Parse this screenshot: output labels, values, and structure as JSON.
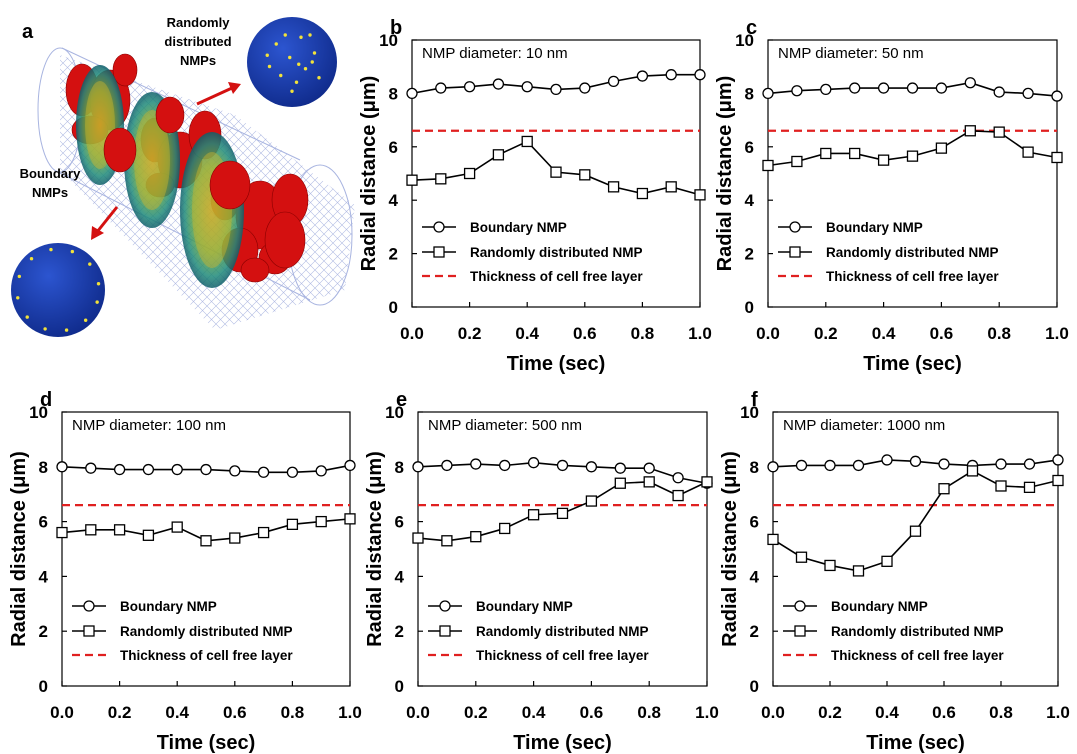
{
  "illustration": {
    "panel_label": "a",
    "label_random": [
      "Randomly",
      "distributed",
      "NMPs"
    ],
    "label_boundary": [
      "Boundary",
      "NMPs"
    ]
  },
  "legend": {
    "boundary": "Boundary NMP",
    "random": "Randomly distributed NMP",
    "cfl": "Thickness of cell free layer"
  },
  "colors": {
    "line": "#000000",
    "cfl": "#e02020",
    "rbc": "#d41010",
    "sphere": "#1a3fb8",
    "particle": "#f2e23a"
  },
  "chart_data": [
    {
      "panel": "b",
      "type": "line",
      "annotation": "NMP diameter: 10 nm",
      "xlabel": "Time (sec)",
      "ylabel": "Radial distance (μm)",
      "xlim": [
        0,
        1
      ],
      "ylim": [
        0,
        10
      ],
      "xticks": [
        "0.0",
        "0.2",
        "0.4",
        "0.6",
        "0.8",
        "1.0"
      ],
      "yticks": [
        "0",
        "2",
        "4",
        "6",
        "8",
        "10"
      ],
      "x": [
        0,
        0.1,
        0.2,
        0.3,
        0.4,
        0.5,
        0.6,
        0.7,
        0.8,
        0.9,
        1.0
      ],
      "series": [
        {
          "name": "Boundary NMP",
          "marker": "circle",
          "values": [
            8.0,
            8.2,
            8.25,
            8.35,
            8.25,
            8.15,
            8.2,
            8.45,
            8.65,
            8.7,
            8.7
          ]
        },
        {
          "name": "Randomly distributed NMP",
          "marker": "square",
          "values": [
            4.75,
            4.8,
            5.0,
            5.7,
            6.2,
            5.05,
            4.95,
            4.5,
            4.25,
            4.5,
            4.2
          ]
        }
      ],
      "cfl": 6.6
    },
    {
      "panel": "c",
      "type": "line",
      "annotation": "NMP diameter: 50 nm",
      "xlabel": "Time (sec)",
      "ylabel": "Radial distance (μm)",
      "xlim": [
        0,
        1
      ],
      "ylim": [
        0,
        10
      ],
      "xticks": [
        "0.0",
        "0.2",
        "0.4",
        "0.6",
        "0.8",
        "1.0"
      ],
      "yticks": [
        "0",
        "2",
        "4",
        "6",
        "8",
        "10"
      ],
      "x": [
        0,
        0.1,
        0.2,
        0.3,
        0.4,
        0.5,
        0.6,
        0.7,
        0.8,
        0.9,
        1.0
      ],
      "series": [
        {
          "name": "Boundary NMP",
          "marker": "circle",
          "values": [
            8.0,
            8.1,
            8.15,
            8.2,
            8.2,
            8.2,
            8.2,
            8.4,
            8.05,
            8.0,
            7.9
          ]
        },
        {
          "name": "Randomly distributed NMP",
          "marker": "square",
          "values": [
            5.3,
            5.45,
            5.75,
            5.75,
            5.5,
            5.65,
            5.95,
            6.6,
            6.55,
            5.8,
            5.6
          ]
        }
      ],
      "cfl": 6.6
    },
    {
      "panel": "d",
      "type": "line",
      "annotation": "NMP diameter: 100 nm",
      "xlabel": "Time (sec)",
      "ylabel": "Radial distance (μm)",
      "xlim": [
        0,
        1
      ],
      "ylim": [
        0,
        10
      ],
      "xticks": [
        "0.0",
        "0.2",
        "0.4",
        "0.6",
        "0.8",
        "1.0"
      ],
      "yticks": [
        "0",
        "2",
        "4",
        "6",
        "8",
        "10"
      ],
      "x": [
        0,
        0.1,
        0.2,
        0.3,
        0.4,
        0.5,
        0.6,
        0.7,
        0.8,
        0.9,
        1.0
      ],
      "series": [
        {
          "name": "Boundary NMP",
          "marker": "circle",
          "values": [
            8.0,
            7.95,
            7.9,
            7.9,
            7.9,
            7.9,
            7.85,
            7.8,
            7.8,
            7.85,
            8.05
          ]
        },
        {
          "name": "Randomly distributed NMP",
          "marker": "square",
          "values": [
            5.6,
            5.7,
            5.7,
            5.5,
            5.8,
            5.3,
            5.4,
            5.6,
            5.9,
            6.0,
            6.1
          ]
        }
      ],
      "cfl": 6.6
    },
    {
      "panel": "e",
      "type": "line",
      "annotation": "NMP diameter: 500 nm",
      "xlabel": "Time (sec)",
      "ylabel": "Radial distance (μm)",
      "xlim": [
        0,
        1
      ],
      "ylim": [
        0,
        10
      ],
      "xticks": [
        "0.0",
        "0.2",
        "0.4",
        "0.6",
        "0.8",
        "1.0"
      ],
      "yticks": [
        "0",
        "2",
        "4",
        "6",
        "8",
        "10"
      ],
      "x": [
        0,
        0.1,
        0.2,
        0.3,
        0.4,
        0.5,
        0.6,
        0.7,
        0.8,
        0.9,
        1.0
      ],
      "series": [
        {
          "name": "Boundary NMP",
          "marker": "circle",
          "values": [
            8.0,
            8.05,
            8.1,
            8.05,
            8.15,
            8.05,
            8.0,
            7.95,
            7.95,
            7.6,
            7.4
          ]
        },
        {
          "name": "Randomly distributed NMP",
          "marker": "square",
          "values": [
            5.4,
            5.3,
            5.45,
            5.75,
            6.25,
            6.3,
            6.75,
            7.4,
            7.45,
            6.95,
            7.45
          ]
        }
      ],
      "cfl": 6.6
    },
    {
      "panel": "f",
      "type": "line",
      "annotation": "NMP diameter: 1000 nm",
      "xlabel": "Time (sec)",
      "ylabel": "Radial distance (μm)",
      "xlim": [
        0,
        1
      ],
      "ylim": [
        0,
        10
      ],
      "xticks": [
        "0.0",
        "0.2",
        "0.4",
        "0.6",
        "0.8",
        "1.0"
      ],
      "yticks": [
        "0",
        "2",
        "4",
        "6",
        "8",
        "10"
      ],
      "x": [
        0,
        0.1,
        0.2,
        0.3,
        0.4,
        0.5,
        0.6,
        0.7,
        0.8,
        0.9,
        1.0
      ],
      "series": [
        {
          "name": "Boundary NMP",
          "marker": "circle",
          "values": [
            8.0,
            8.05,
            8.05,
            8.05,
            8.25,
            8.2,
            8.1,
            8.05,
            8.1,
            8.1,
            8.25
          ]
        },
        {
          "name": "Randomly distributed NMP",
          "marker": "square",
          "values": [
            5.35,
            4.7,
            4.4,
            4.2,
            4.55,
            5.65,
            7.2,
            7.85,
            7.3,
            7.25,
            7.5
          ]
        }
      ],
      "cfl": 6.6
    }
  ]
}
